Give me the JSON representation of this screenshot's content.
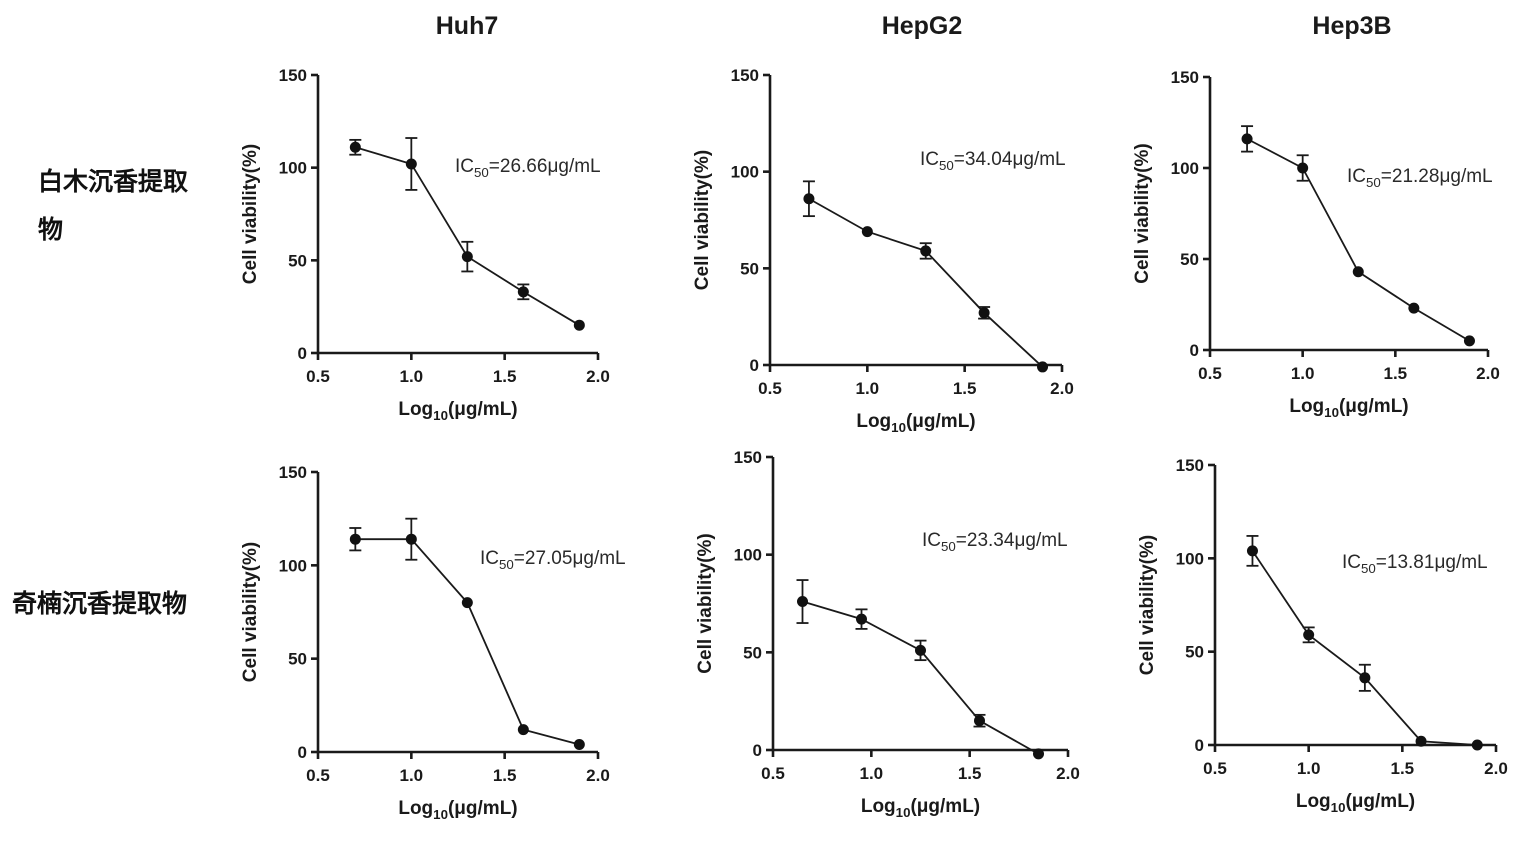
{
  "column_titles": [
    "Huh7",
    "HepG2",
    "Hep3B"
  ],
  "row_labels": [
    "白木沉香提取物",
    "奇楠沉香提取物"
  ],
  "chart_data": [
    {
      "type": "line",
      "title": "Huh7",
      "xlabel": "Log10(μg/mL)",
      "ylabel": "Cell viability(%)",
      "xlim": [
        0.5,
        2.0
      ],
      "ylim": [
        0,
        150
      ],
      "xticks": [
        "0.5",
        "1.0",
        "1.5",
        "2.0"
      ],
      "yticks": [
        "0",
        "50",
        "100",
        "150"
      ],
      "annotation": "IC50=26.66μg/mL",
      "x": [
        0.7,
        1.0,
        1.3,
        1.6,
        1.9
      ],
      "y": [
        111,
        102,
        52,
        33,
        15
      ],
      "err": [
        4,
        14,
        8,
        4,
        1
      ]
    },
    {
      "type": "line",
      "title": "HepG2",
      "xlabel": "Log10(μg/mL)",
      "ylabel": "Cell viability(%)",
      "xlim": [
        0.5,
        2.0
      ],
      "ylim": [
        0,
        150
      ],
      "xticks": [
        "0.5",
        "1.0",
        "1.5",
        "2.0"
      ],
      "yticks": [
        "0",
        "50",
        "100",
        "150"
      ],
      "annotation": "IC50=34.04μg/mL",
      "x": [
        0.7,
        1.0,
        1.3,
        1.6,
        1.9
      ],
      "y": [
        86,
        69,
        59,
        27,
        -1
      ],
      "err": [
        9,
        1,
        4,
        3,
        1
      ]
    },
    {
      "type": "line",
      "title": "Hep3B",
      "xlabel": "Log10(μg/mL)",
      "ylabel": "Cell viability(%)",
      "xlim": [
        0.5,
        2.0
      ],
      "ylim": [
        0,
        150
      ],
      "xticks": [
        "0.5",
        "1.0",
        "1.5",
        "2.0"
      ],
      "yticks": [
        "0",
        "50",
        "100",
        "150"
      ],
      "annotation": "IC50=21.28μg/mL",
      "x": [
        0.7,
        1.0,
        1.3,
        1.6,
        1.9
      ],
      "y": [
        116,
        100,
        43,
        23,
        5
      ],
      "err": [
        7,
        7,
        1,
        1,
        1
      ]
    },
    {
      "type": "line",
      "xlabel": "Log10(μg/mL)",
      "ylabel": "Cell viability(%)",
      "xlim": [
        0.5,
        2.0
      ],
      "ylim": [
        0,
        150
      ],
      "xticks": [
        "0.5",
        "1.0",
        "1.5",
        "2.0"
      ],
      "yticks": [
        "0",
        "50",
        "100",
        "150"
      ],
      "annotation": "IC50=27.05μg/mL",
      "x": [
        0.7,
        1.0,
        1.3,
        1.6,
        1.9
      ],
      "y": [
        114,
        114,
        80,
        12,
        4
      ],
      "err": [
        6,
        11,
        1,
        1,
        1
      ]
    },
    {
      "type": "line",
      "xlabel": "Log10(μg/mL)",
      "ylabel": "Cell viability(%)",
      "xlim": [
        0.5,
        2.0
      ],
      "ylim": [
        0,
        150
      ],
      "xticks": [
        "0.5",
        "1.0",
        "1.5",
        "2.0"
      ],
      "yticks": [
        "0",
        "50",
        "100",
        "150"
      ],
      "annotation": "IC50=23.34μg/mL",
      "x": [
        0.65,
        0.95,
        1.25,
        1.55,
        1.85
      ],
      "y": [
        76,
        67,
        51,
        15,
        -2
      ],
      "err": [
        11,
        5,
        5,
        3,
        1
      ]
    },
    {
      "type": "line",
      "xlabel": "Log10(μg/mL)",
      "ylabel": "Cell viability(%)",
      "xlim": [
        0.5,
        2.0
      ],
      "ylim": [
        0,
        150
      ],
      "xticks": [
        "0.5",
        "1.0",
        "1.5",
        "2.0"
      ],
      "yticks": [
        "0",
        "50",
        "100",
        "150"
      ],
      "annotation": "IC50=13.81μg/mL",
      "x": [
        0.7,
        1.0,
        1.3,
        1.6,
        1.9
      ],
      "y": [
        104,
        59,
        36,
        2,
        0
      ],
      "err": [
        8,
        4,
        7,
        1,
        1
      ]
    }
  ]
}
